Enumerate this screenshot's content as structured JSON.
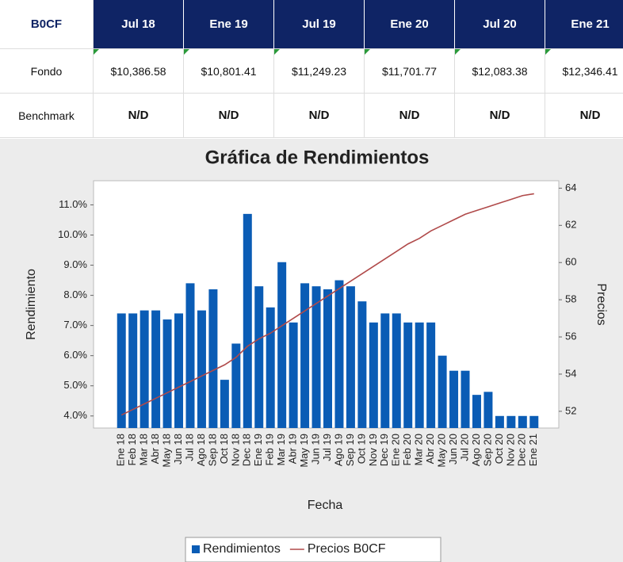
{
  "table": {
    "header": [
      "B0CF",
      "Jul 18",
      "Ene 19",
      "Jul 19",
      "Ene 20",
      "Jul 20",
      "Ene 21"
    ],
    "rows": [
      [
        "Fondo",
        "$10,386.58",
        "$10,801.41",
        "$11,249.23",
        "$11,701.77",
        "$12,083.38",
        "$12,346.41"
      ],
      [
        "Benchmark",
        "N/D",
        "N/D",
        "N/D",
        "N/D",
        "N/D",
        "N/D"
      ]
    ]
  },
  "chart_data": {
    "type": "bar",
    "title": "Gráfica de Rendimientos",
    "x_label": "Fecha",
    "y_label": "Rendimiento",
    "y2_label": "Precios",
    "categories": [
      "Ene 18",
      "Feb 18",
      "Mar 18",
      "Abr 18",
      "May 18",
      "Jun 18",
      "Jul 18",
      "Ago 18",
      "Sep 18",
      "Oct 18",
      "Nov 18",
      "Dec 18",
      "Ene 19",
      "Feb 19",
      "Mar 19",
      "Abr 19",
      "May 19",
      "Jun 19",
      "Jul 19",
      "Ago 19",
      "Sep 19",
      "Oct 19",
      "Nov 19",
      "Dec 19",
      "Ene 20",
      "Feb 20",
      "Mar 20",
      "Abr 20",
      "May 20",
      "Jun 20",
      "Jul 20",
      "Ago 20",
      "Sep 20",
      "Oct 20",
      "Nov 20",
      "Dec 20",
      "Ene 21"
    ],
    "series": [
      {
        "name": "Rendimientos",
        "type": "bar",
        "color": "#0a5cb5",
        "values": [
          7.4,
          7.4,
          7.5,
          7.5,
          7.2,
          7.4,
          8.4,
          7.5,
          8.2,
          5.2,
          6.4,
          10.7,
          8.3,
          7.6,
          9.1,
          7.1,
          8.4,
          8.3,
          8.2,
          8.5,
          8.3,
          7.8,
          7.1,
          7.4,
          7.4,
          7.1,
          7.1,
          7.1,
          6.0,
          5.5,
          5.5,
          4.7,
          4.8,
          4.0,
          4.0,
          4.0,
          4.0
        ]
      },
      {
        "name": "Precios B0CF",
        "type": "line",
        "axis": "y2",
        "color": "#b04a4a",
        "values": [
          51.8,
          52.1,
          52.4,
          52.7,
          53.0,
          53.3,
          53.6,
          53.9,
          54.2,
          54.5,
          54.9,
          55.5,
          55.9,
          56.2,
          56.6,
          57.0,
          57.4,
          57.8,
          58.2,
          58.6,
          59.0,
          59.4,
          59.8,
          60.2,
          60.6,
          61.0,
          61.3,
          61.7,
          62.0,
          62.3,
          62.6,
          62.8,
          63.0,
          63.2,
          63.4,
          63.6,
          63.7
        ]
      }
    ],
    "ylim": [
      3.6,
      11.8
    ],
    "yticks": [
      {
        "value": 4,
        "label": "4.0%"
      },
      {
        "value": 5,
        "label": "5.0%"
      },
      {
        "value": 6,
        "label": "6.0%"
      },
      {
        "value": 7,
        "label": "7.0%"
      },
      {
        "value": 8,
        "label": "8.0%"
      },
      {
        "value": 9,
        "label": "9.0%"
      },
      {
        "value": 10,
        "label": "10.0%"
      },
      {
        "value": 11,
        "label": "11.0%"
      }
    ],
    "y2lim": [
      51.1,
      64.4
    ],
    "y2ticks": [
      52,
      54,
      56,
      58,
      60,
      62,
      64
    ],
    "grid": false
  }
}
